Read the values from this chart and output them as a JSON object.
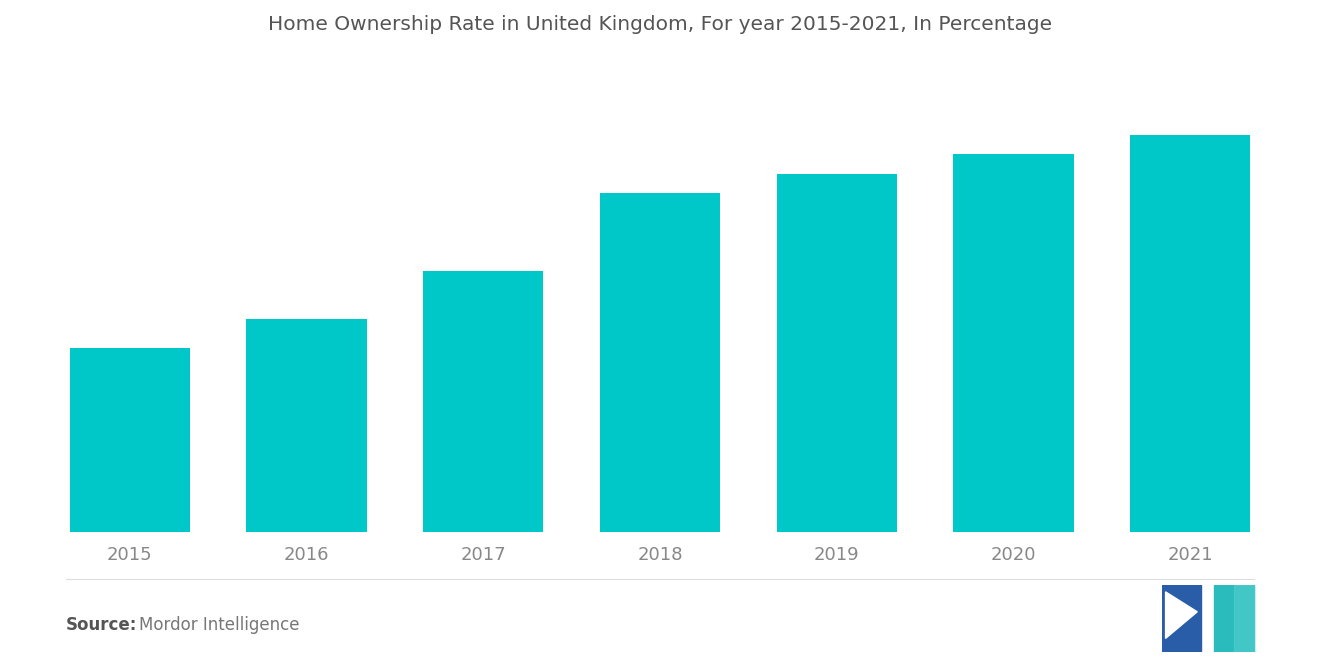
{
  "title": "Home Ownership Rate in United Kingdom, For year 2015-2021, In Percentage",
  "categories": [
    "2015",
    "2016",
    "2017",
    "2018",
    "2019",
    "2020",
    "2021"
  ],
  "values": [
    63.4,
    63.7,
    64.2,
    65.0,
    65.2,
    65.4,
    65.6
  ],
  "bar_color": "#00C8C8",
  "background_color": "#ffffff",
  "title_color": "#555555",
  "tick_color": "#888888",
  "source_label": "Source:",
  "source_text": "Mordor Intelligence",
  "title_fontsize": 14.5,
  "tick_fontsize": 13,
  "source_fontsize": 12,
  "bar_width": 0.68,
  "ylim_min": 61.5,
  "ylim_max": 66.4
}
